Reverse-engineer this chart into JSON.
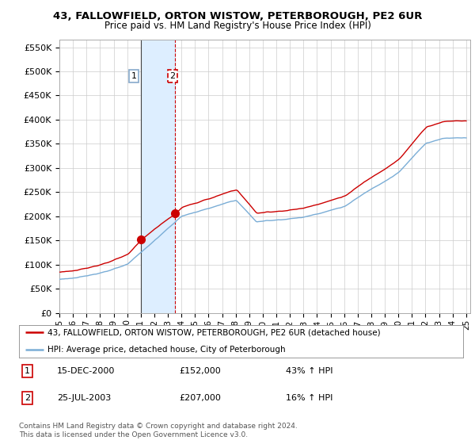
{
  "title_line1": "43, FALLOWFIELD, ORTON WISTOW, PETERBOROUGH, PE2 6UR",
  "title_line2": "Price paid vs. HM Land Registry's House Price Index (HPI)",
  "ylim": [
    0,
    550000
  ],
  "yticks": [
    0,
    50000,
    100000,
    150000,
    200000,
    250000,
    300000,
    350000,
    400000,
    450000,
    500000,
    550000
  ],
  "ytick_labels": [
    "£0",
    "£50K",
    "£100K",
    "£150K",
    "£200K",
    "£250K",
    "£300K",
    "£350K",
    "£400K",
    "£450K",
    "£500K",
    "£550K"
  ],
  "sale1_t": 2001.0,
  "sale1_price": 152000,
  "sale2_t": 2003.55,
  "sale2_price": 207000,
  "legend_line1": "43, FALLOWFIELD, ORTON WISTOW, PETERBOROUGH, PE2 6UR (detached house)",
  "legend_line2": "HPI: Average price, detached house, City of Peterborough",
  "table_row1": [
    "1",
    "15-DEC-2000",
    "£152,000",
    "43% ↑ HPI"
  ],
  "table_row2": [
    "2",
    "25-JUL-2003",
    "£207,000",
    "16% ↑ HPI"
  ],
  "footer": "Contains HM Land Registry data © Crown copyright and database right 2024.\nThis data is licensed under the Open Government Licence v3.0.",
  "line_color_red": "#cc0000",
  "line_color_blue": "#7aadd6",
  "shade_color": "#ddeeff",
  "background_color": "#ffffff",
  "grid_color": "#cccccc"
}
